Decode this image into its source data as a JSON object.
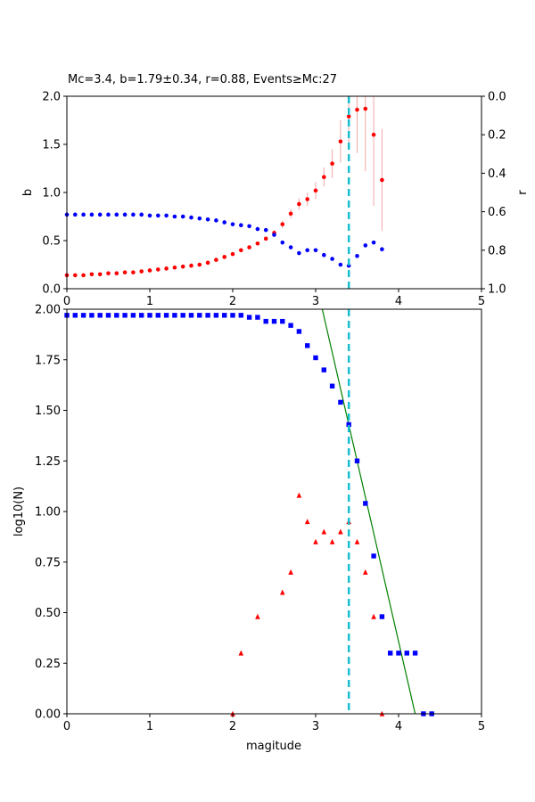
{
  "chart_data": [
    {
      "type": "scatter",
      "title": "Mc=3.4, b=1.79±0.34, r=0.88, Events≥Mc:27",
      "xlabel": "",
      "ylabel": "b",
      "ylabel_right": "r",
      "xlim": [
        0,
        5
      ],
      "ylim": [
        0,
        2.0
      ],
      "ylim_right": [
        1.0,
        0.0
      ],
      "x_ticks": [
        "0",
        "1",
        "2",
        "3",
        "4",
        "5"
      ],
      "y_ticks": [
        "0.0",
        "0.5",
        "1.0",
        "1.5",
        "2.0"
      ],
      "y_ticks_right": [
        "0.0",
        "0.2",
        "0.4",
        "0.6",
        "0.8",
        "1.0"
      ],
      "grid": false,
      "mc_line": 3.4,
      "series": [
        {
          "axis": "left",
          "color": "#ff0000",
          "marker": "dot",
          "x": [
            0,
            0.1,
            0.2,
            0.3,
            0.4,
            0.5,
            0.6,
            0.7,
            0.8,
            0.9,
            1.0,
            1.1,
            1.2,
            1.3,
            1.4,
            1.5,
            1.6,
            1.7,
            1.8,
            1.9,
            2.0,
            2.1,
            2.2,
            2.3,
            2.4,
            2.5,
            2.6,
            2.7,
            2.8,
            2.9,
            3.0,
            3.1,
            3.2,
            3.3,
            3.4,
            3.5,
            3.6,
            3.7,
            3.8
          ],
          "y": [
            0.14,
            0.14,
            0.14,
            0.15,
            0.15,
            0.16,
            0.16,
            0.17,
            0.17,
            0.18,
            0.19,
            0.2,
            0.21,
            0.22,
            0.23,
            0.24,
            0.25,
            0.27,
            0.3,
            0.33,
            0.36,
            0.4,
            0.43,
            0.47,
            0.52,
            0.58,
            0.67,
            0.78,
            0.88,
            0.93,
            1.02,
            1.16,
            1.3,
            1.53,
            1.79,
            1.86,
            1.87,
            1.6,
            1.13
          ],
          "err": [
            0,
            0,
            0,
            0,
            0,
            0,
            0,
            0,
            0,
            0,
            0,
            0,
            0,
            0,
            0,
            0,
            0,
            0,
            0,
            0,
            0,
            0,
            0,
            0.01,
            0.02,
            0.03,
            0.04,
            0.05,
            0.06,
            0.07,
            0.09,
            0.1,
            0.15,
            0.22,
            0.34,
            0.45,
            0.65,
            0.74,
            0.53
          ]
        },
        {
          "axis": "right",
          "color": "#0000ff",
          "marker": "dot",
          "x": [
            0,
            0.1,
            0.2,
            0.3,
            0.4,
            0.5,
            0.6,
            0.7,
            0.8,
            0.9,
            1.0,
            1.1,
            1.2,
            1.3,
            1.4,
            1.5,
            1.6,
            1.7,
            1.8,
            1.9,
            2.0,
            2.1,
            2.2,
            2.3,
            2.4,
            2.5,
            2.6,
            2.7,
            2.8,
            2.9,
            3.0,
            3.1,
            3.2,
            3.3,
            3.4,
            3.5,
            3.6,
            3.7,
            3.8
          ],
          "y": [
            0.615,
            0.615,
            0.615,
            0.615,
            0.615,
            0.615,
            0.615,
            0.615,
            0.615,
            0.615,
            0.62,
            0.62,
            0.62,
            0.625,
            0.625,
            0.63,
            0.635,
            0.64,
            0.645,
            0.655,
            0.665,
            0.67,
            0.675,
            0.69,
            0.695,
            0.72,
            0.76,
            0.785,
            0.815,
            0.8,
            0.8,
            0.825,
            0.845,
            0.875,
            0.88,
            0.83,
            0.775,
            0.76,
            0.795
          ]
        }
      ]
    },
    {
      "type": "scatter",
      "xlabel": "magitude",
      "ylabel": "log10(N)",
      "xlim": [
        0,
        5
      ],
      "ylim": [
        0,
        2.0
      ],
      "x_ticks": [
        "0",
        "1",
        "2",
        "3",
        "4",
        "5"
      ],
      "y_ticks": [
        "0.00",
        "0.25",
        "0.50",
        "0.75",
        "1.00",
        "1.25",
        "1.50",
        "1.75",
        "2.00"
      ],
      "grid": false,
      "mc_line": 3.4,
      "fit_line": {
        "color": "#008000",
        "x": [
          3.08,
          4.2
        ],
        "y": [
          2.0,
          0.0
        ]
      },
      "series": [
        {
          "color": "#0000ff",
          "marker": "square",
          "x": [
            0,
            0.1,
            0.2,
            0.3,
            0.4,
            0.5,
            0.6,
            0.7,
            0.8,
            0.9,
            1.0,
            1.1,
            1.2,
            1.3,
            1.4,
            1.5,
            1.6,
            1.7,
            1.8,
            1.9,
            2.0,
            2.1,
            2.2,
            2.3,
            2.4,
            2.5,
            2.6,
            2.7,
            2.8,
            2.9,
            3.0,
            3.1,
            3.2,
            3.3,
            3.4,
            3.5,
            3.6,
            3.7,
            3.8,
            3.9,
            4.0,
            4.1,
            4.2,
            4.3,
            4.4
          ],
          "y": [
            1.97,
            1.97,
            1.97,
            1.97,
            1.97,
            1.97,
            1.97,
            1.97,
            1.97,
            1.97,
            1.97,
            1.97,
            1.97,
            1.97,
            1.97,
            1.97,
            1.97,
            1.97,
            1.97,
            1.97,
            1.97,
            1.97,
            1.96,
            1.96,
            1.94,
            1.94,
            1.94,
            1.92,
            1.89,
            1.82,
            1.76,
            1.7,
            1.62,
            1.54,
            1.43,
            1.25,
            1.04,
            0.78,
            0.48,
            0.3,
            0.3,
            0.3,
            0.3,
            0.0,
            0.0
          ]
        },
        {
          "color": "#ff0000",
          "marker": "triangle",
          "x": [
            2.0,
            2.1,
            2.3,
            2.6,
            2.7,
            2.8,
            2.9,
            3.0,
            3.1,
            3.2,
            3.3,
            3.4,
            3.5,
            3.6,
            3.7,
            3.8
          ],
          "y": [
            0.0,
            0.3,
            0.48,
            0.6,
            0.7,
            1.08,
            0.95,
            0.85,
            0.9,
            0.85,
            0.9,
            0.95,
            0.85,
            0.7,
            0.48,
            0.0
          ]
        }
      ]
    }
  ]
}
